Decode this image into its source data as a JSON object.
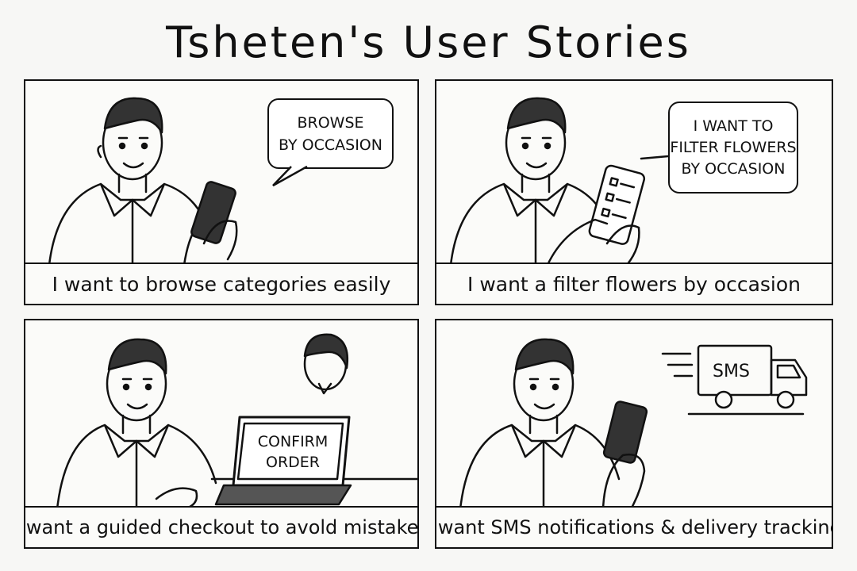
{
  "title": "Tsheten's User Stories",
  "panels": [
    {
      "caption": "I want to browse categories easily",
      "bubble": [
        "BROWSE",
        "BY OCCASION"
      ]
    },
    {
      "caption": "I want a filter flowers by occasion",
      "bubble": [
        "I WANT TO",
        "FILTER FLOWERS",
        "BY OCCASION"
      ]
    },
    {
      "caption": "I want a guided checkout to avold mistakes",
      "screen": [
        "CONFIRM",
        "ORDER"
      ]
    },
    {
      "caption": "I want SMS notifications & delivery tracking",
      "truck_label": "SMS"
    }
  ]
}
